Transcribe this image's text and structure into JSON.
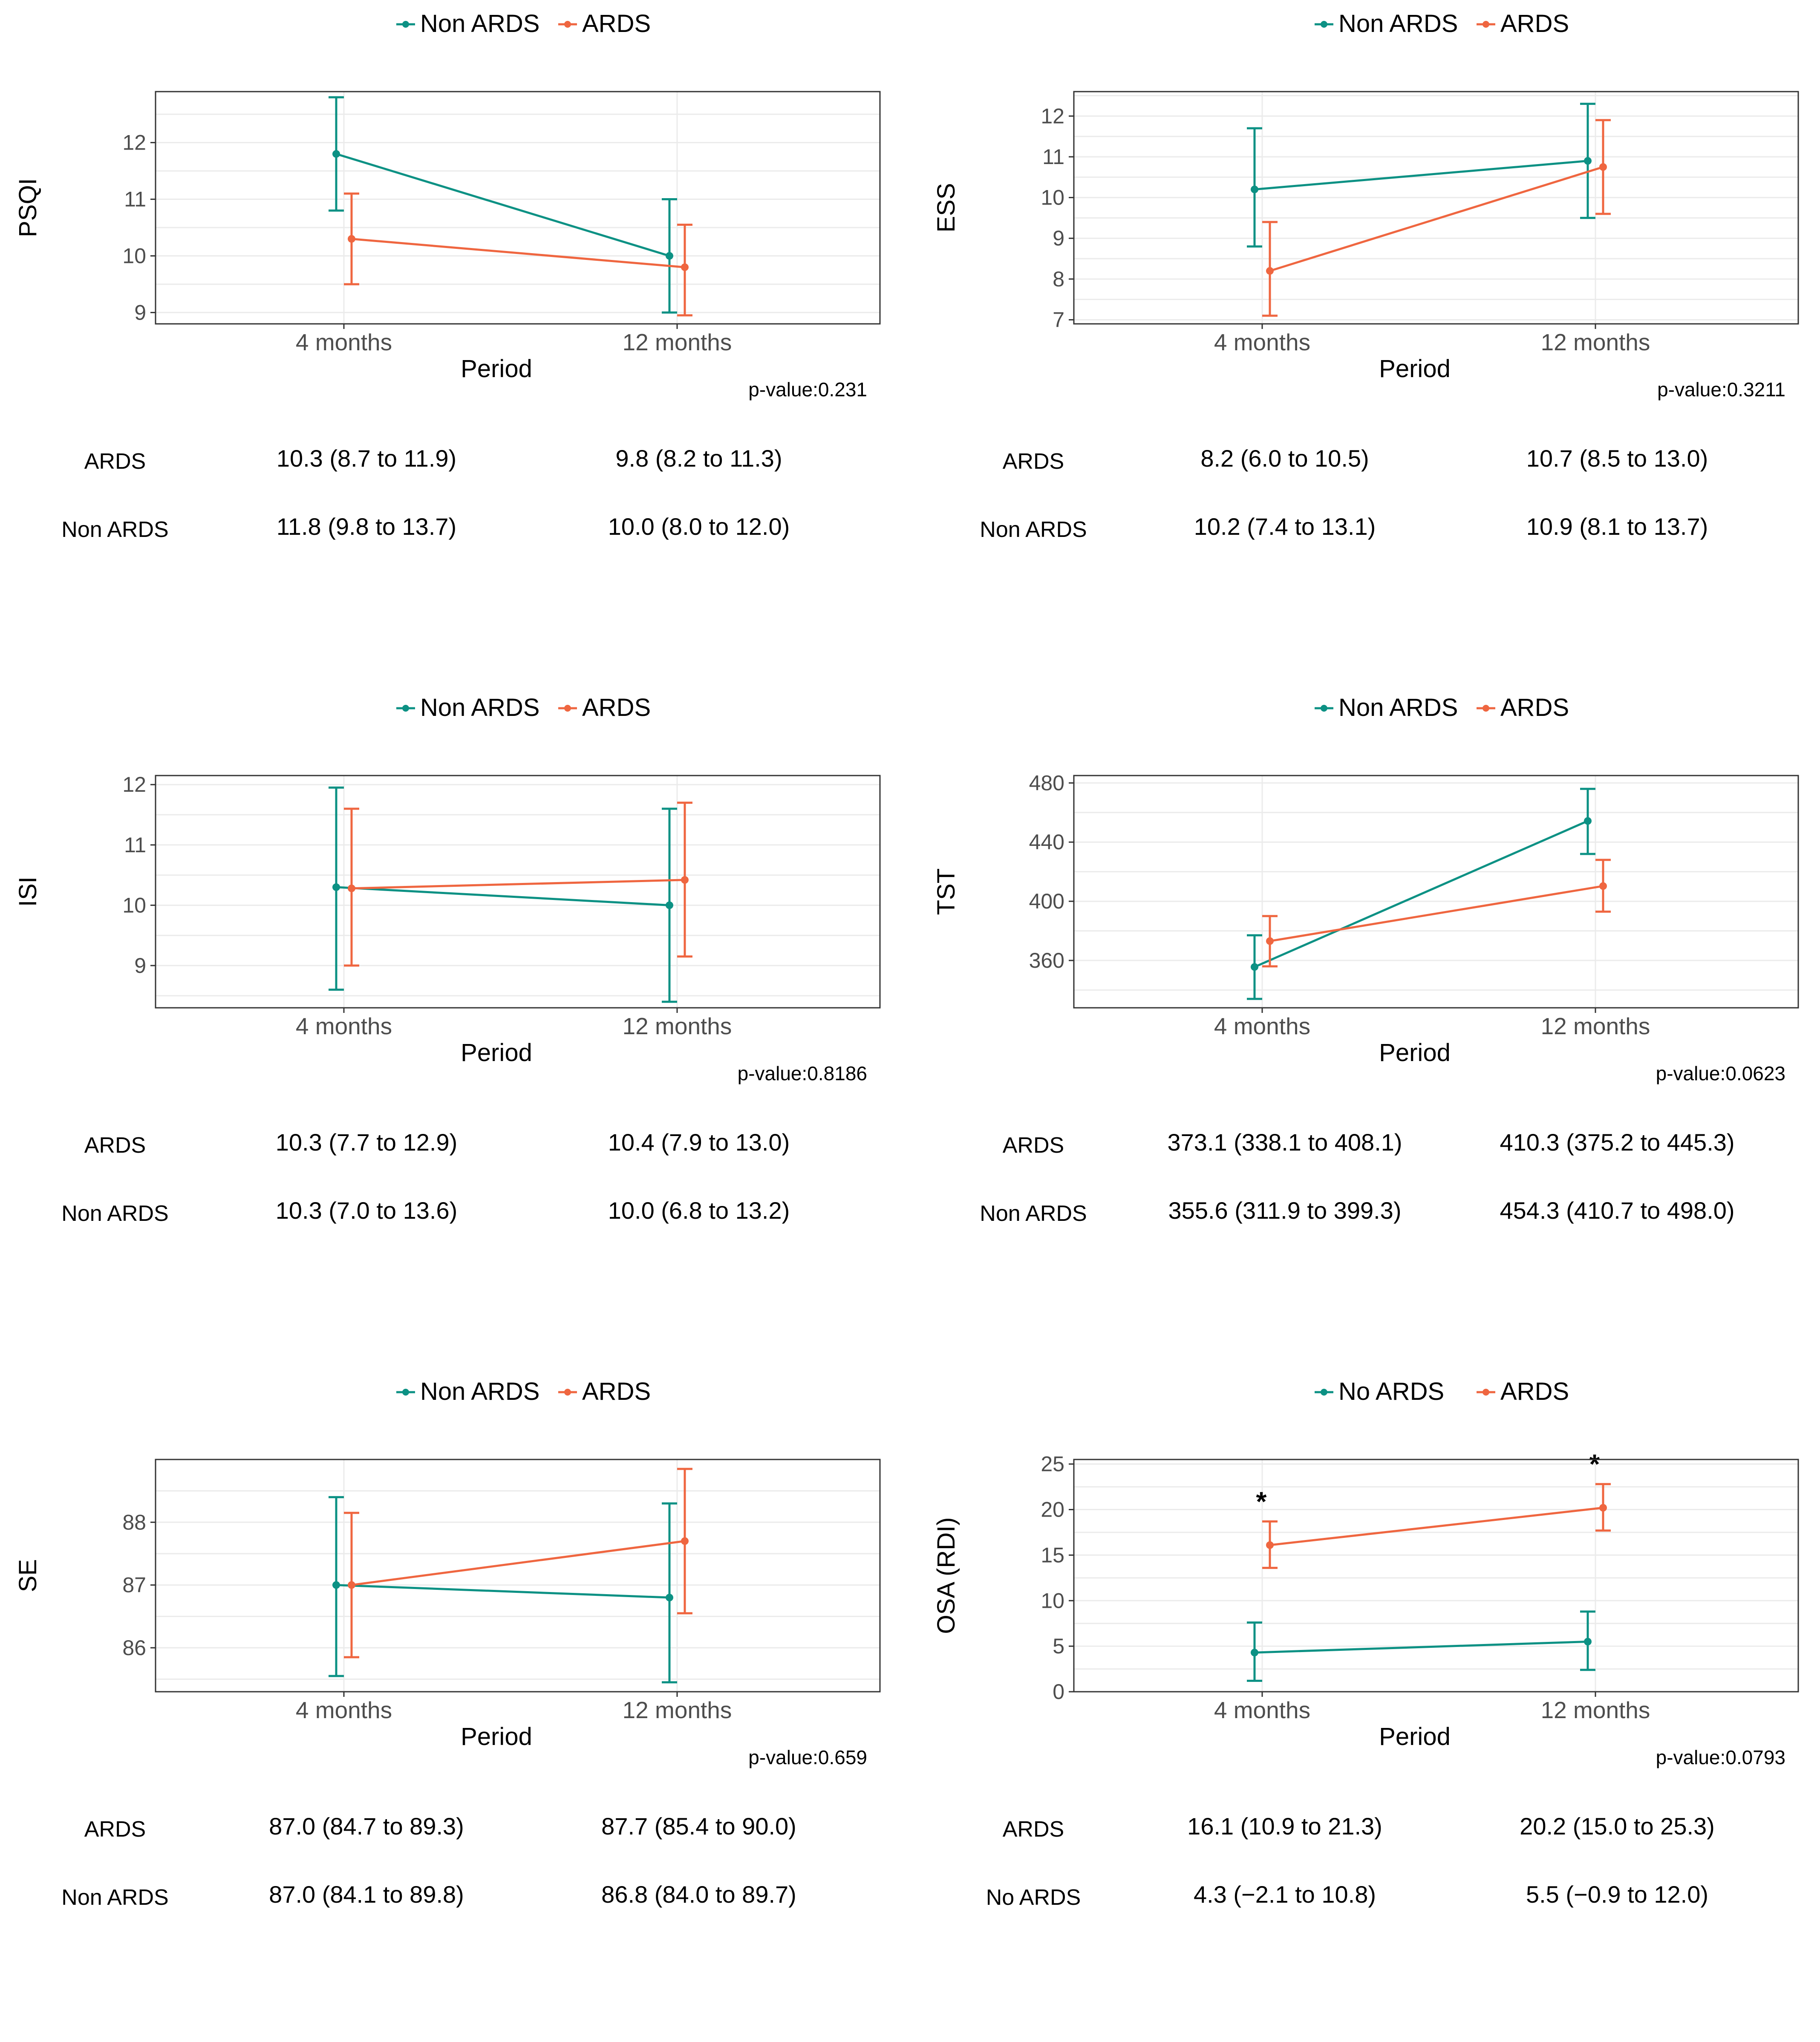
{
  "colors": {
    "non_ards": "#0c9184",
    "ards": "#ef6640",
    "grid": "#ebebeb",
    "frame": "#333333"
  },
  "chart_data": [
    {
      "type": "line",
      "ylabel": "PSQI",
      "xlabel": "Period",
      "categories": [
        "4 months",
        "12 months"
      ],
      "ylim": [
        8.8,
        12.9
      ],
      "yticks": [
        9,
        10,
        11,
        12
      ],
      "legend": [
        "Non ARDS",
        "ARDS"
      ],
      "series": [
        {
          "name": "Non ARDS",
          "key": "non_ards",
          "values": [
            11.8,
            10.0
          ],
          "err_low": [
            10.8,
            9.0
          ],
          "err_high": [
            12.8,
            11.0
          ]
        },
        {
          "name": "ARDS",
          "key": "ards",
          "values": [
            10.3,
            9.8
          ],
          "err_low": [
            9.5,
            8.95
          ],
          "err_high": [
            11.1,
            10.55
          ]
        }
      ],
      "pvalue": "p-value:0.231",
      "table": [
        {
          "label": "ARDS",
          "cells": [
            "10.3 (8.7 to 11.9)",
            "9.8 (8.2 to 11.3)"
          ]
        },
        {
          "label": "Non ARDS",
          "cells": [
            "11.8 (9.8 to 13.7)",
            "10.0 (8.0 to 12.0)"
          ]
        }
      ],
      "stars": []
    },
    {
      "type": "line",
      "ylabel": "ESS",
      "xlabel": "Period",
      "categories": [
        "4 months",
        "12 months"
      ],
      "ylim": [
        6.9,
        12.6
      ],
      "yticks": [
        7,
        8,
        9,
        10,
        11,
        12
      ],
      "legend": [
        "Non ARDS",
        "ARDS"
      ],
      "series": [
        {
          "name": "Non ARDS",
          "key": "non_ards",
          "values": [
            10.2,
            10.9
          ],
          "err_low": [
            8.8,
            9.5
          ],
          "err_high": [
            11.7,
            12.3
          ]
        },
        {
          "name": "ARDS",
          "key": "ards",
          "values": [
            8.2,
            10.75
          ],
          "err_low": [
            7.1,
            9.6
          ],
          "err_high": [
            9.4,
            11.9
          ]
        }
      ],
      "pvalue": "p-value:0.3211",
      "table": [
        {
          "label": "ARDS",
          "cells": [
            "8.2 (6.0 to 10.5)",
            "10.7 (8.5 to 13.0)"
          ]
        },
        {
          "label": "Non ARDS",
          "cells": [
            "10.2 (7.4 to 13.1)",
            "10.9 (8.1 to 13.7)"
          ]
        }
      ],
      "stars": []
    },
    {
      "type": "line",
      "ylabel": "ISI",
      "xlabel": "Period",
      "categories": [
        "4 months",
        "12 months"
      ],
      "ylim": [
        8.3,
        12.15
      ],
      "yticks": [
        9,
        10,
        11,
        12
      ],
      "legend": [
        "Non ARDS",
        "ARDS"
      ],
      "series": [
        {
          "name": "Non ARDS",
          "key": "non_ards",
          "values": [
            10.3,
            10.0
          ],
          "err_low": [
            8.6,
            8.4
          ],
          "err_high": [
            11.95,
            11.6
          ]
        },
        {
          "name": "ARDS",
          "key": "ards",
          "values": [
            10.28,
            10.42
          ],
          "err_low": [
            9.0,
            9.15
          ],
          "err_high": [
            11.6,
            11.7
          ]
        }
      ],
      "pvalue": "p-value:0.8186",
      "table": [
        {
          "label": "ARDS",
          "cells": [
            "10.3 (7.7 to 12.9)",
            "10.4 (7.9 to 13.0)"
          ]
        },
        {
          "label": "Non ARDS",
          "cells": [
            "10.3 (7.0 to 13.6)",
            "10.0 (6.8 to 13.2)"
          ]
        }
      ],
      "stars": []
    },
    {
      "type": "line",
      "ylabel": "TST",
      "xlabel": "Period",
      "categories": [
        "4 months",
        "12 months"
      ],
      "ylim": [
        328,
        485
      ],
      "yticks": [
        360,
        400,
        440,
        480
      ],
      "legend": [
        "Non ARDS",
        "ARDS"
      ],
      "series": [
        {
          "name": "Non ARDS",
          "key": "non_ards",
          "values": [
            355.6,
            454.3
          ],
          "err_low": [
            334,
            432
          ],
          "err_high": [
            377,
            476
          ]
        },
        {
          "name": "ARDS",
          "key": "ards",
          "values": [
            373.1,
            410.3
          ],
          "err_low": [
            356,
            393
          ],
          "err_high": [
            390,
            428
          ]
        }
      ],
      "pvalue": "p-value:0.0623",
      "table": [
        {
          "label": "ARDS",
          "cells": [
            "373.1 (338.1 to 408.1)",
            "410.3 (375.2 to 445.3)"
          ]
        },
        {
          "label": "Non ARDS",
          "cells": [
            "355.6 (311.9 to 399.3)",
            "454.3 (410.7 to 498.0)"
          ]
        }
      ],
      "stars": []
    },
    {
      "type": "line",
      "ylabel": "SE",
      "xlabel": "Period",
      "categories": [
        "4 months",
        "12 months"
      ],
      "ylim": [
        85.3,
        89.0
      ],
      "yticks": [
        86,
        87,
        88
      ],
      "legend": [
        "Non ARDS",
        "ARDS"
      ],
      "series": [
        {
          "name": "Non ARDS",
          "key": "non_ards",
          "values": [
            87.0,
            86.8
          ],
          "err_low": [
            85.55,
            85.45
          ],
          "err_high": [
            88.4,
            88.3
          ]
        },
        {
          "name": "ARDS",
          "key": "ards",
          "values": [
            87.0,
            87.7
          ],
          "err_low": [
            85.85,
            86.55
          ],
          "err_high": [
            88.15,
            88.85
          ]
        }
      ],
      "pvalue": "p-value:0.659",
      "table": [
        {
          "label": "ARDS",
          "cells": [
            "87.0 (84.7 to 89.3)",
            "87.7 (85.4 to 90.0)"
          ]
        },
        {
          "label": "Non ARDS",
          "cells": [
            "87.0 (84.1 to 89.8)",
            "86.8 (84.0 to 89.7)"
          ]
        }
      ],
      "stars": []
    },
    {
      "type": "line",
      "ylabel": "OSA (RDI)",
      "xlabel": "Period",
      "categories": [
        "4 months",
        "12 months"
      ],
      "ylim": [
        0,
        25.5
      ],
      "yticks": [
        0,
        5,
        10,
        15,
        20,
        25
      ],
      "legend": [
        "No ARDS",
        "ARDS"
      ],
      "series": [
        {
          "name": "No ARDS",
          "key": "non_ards",
          "values": [
            4.3,
            5.5
          ],
          "err_low": [
            1.2,
            2.4
          ],
          "err_high": [
            7.6,
            8.8
          ]
        },
        {
          "name": "ARDS",
          "key": "ards",
          "values": [
            16.1,
            20.2
          ],
          "err_low": [
            13.6,
            17.7
          ],
          "err_high": [
            18.7,
            22.8
          ]
        }
      ],
      "pvalue": "p-value:0.0793",
      "table": [
        {
          "label": "ARDS",
          "cells": [
            "16.1 (10.9 to 21.3)",
            "20.2 (15.0 to 25.3)"
          ]
        },
        {
          "label": "No ARDS",
          "cells": [
            "4.3 (−2.1 to 10.8)",
            "5.5 (−0.9 to 12.0)"
          ]
        }
      ],
      "stars": [
        "*",
        "*"
      ]
    }
  ]
}
